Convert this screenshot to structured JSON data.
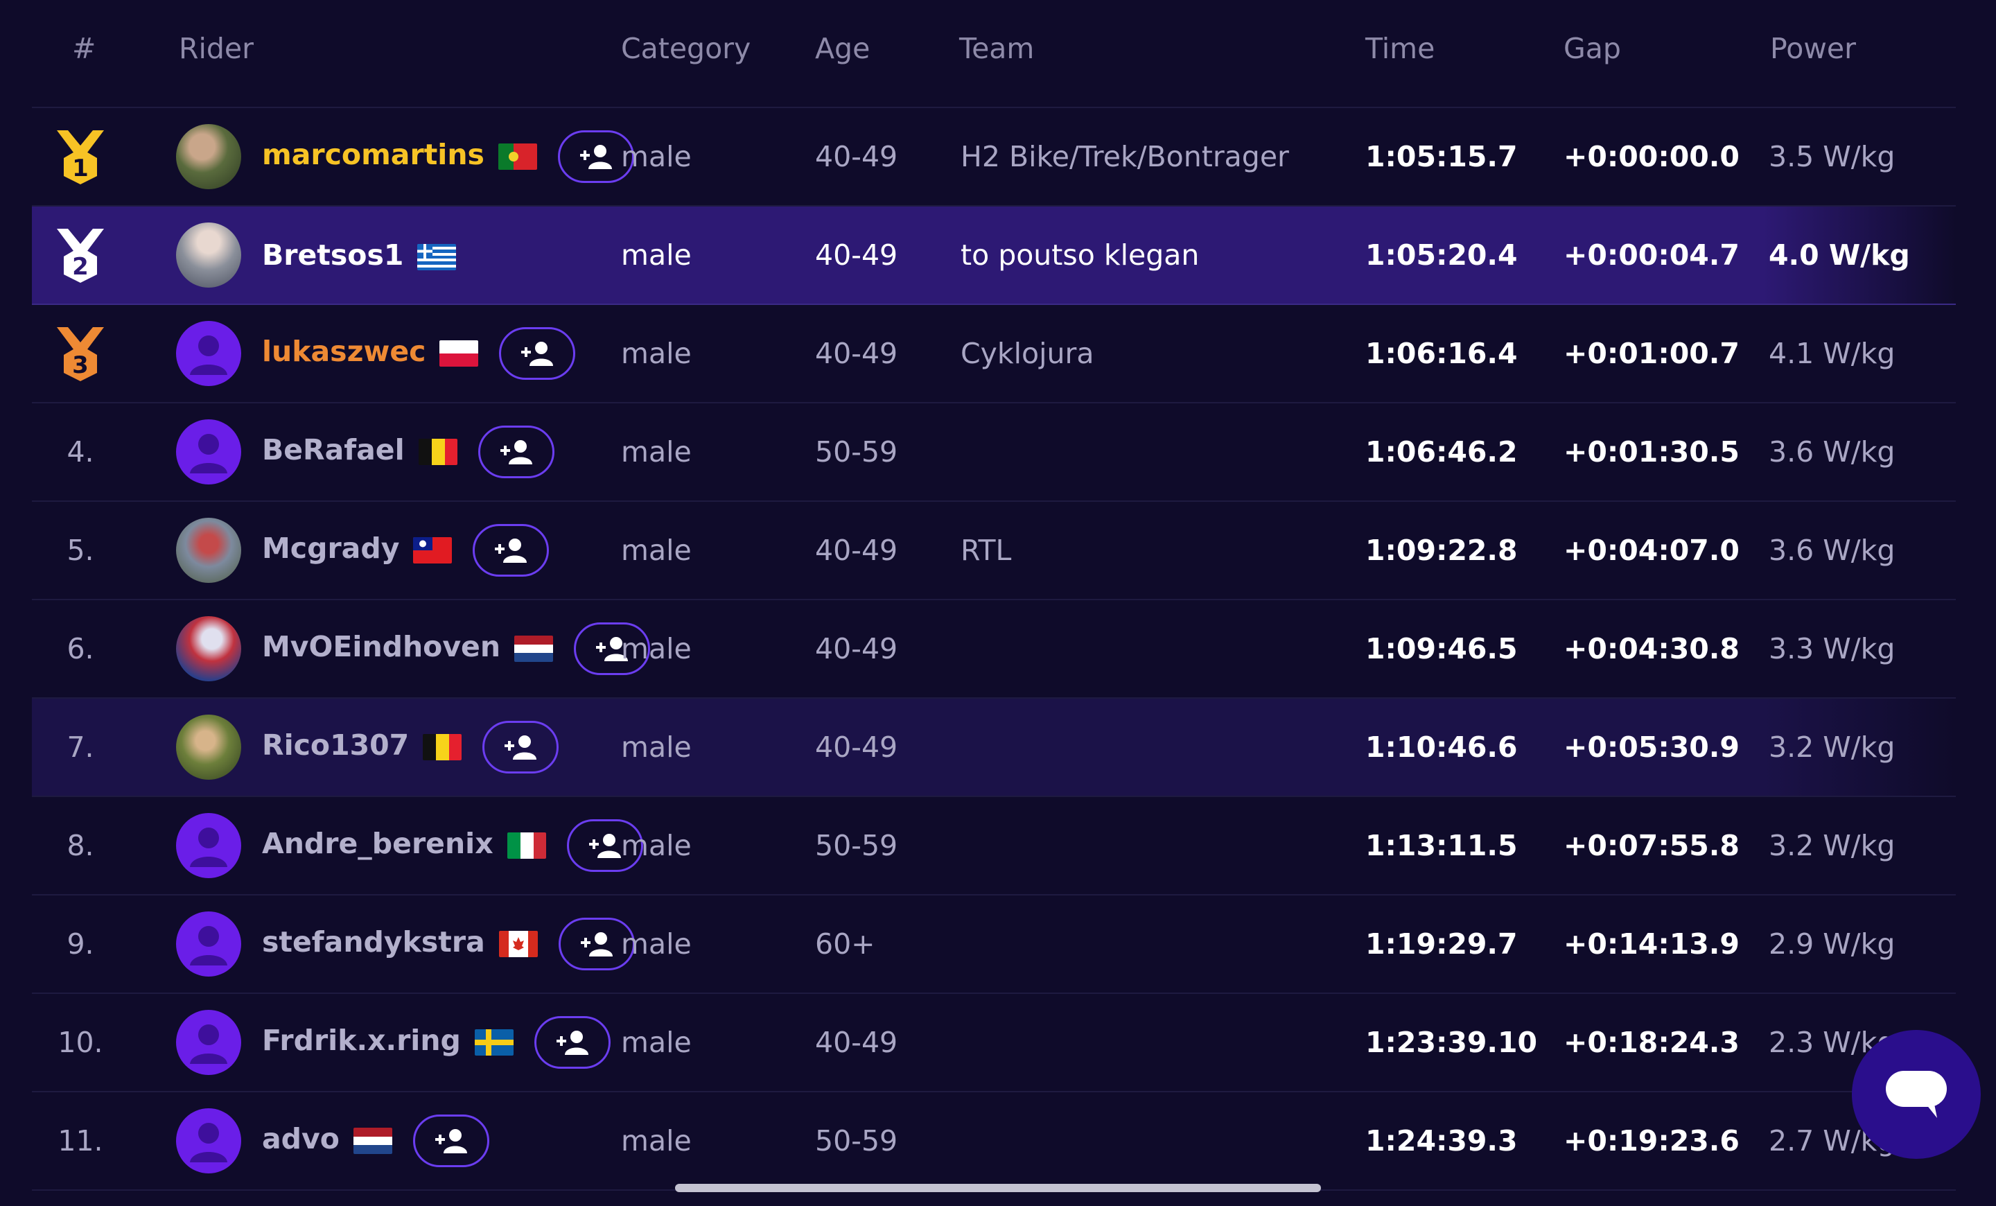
{
  "columns": {
    "rank": "#",
    "rider": "Rider",
    "category": "Category",
    "age": "Age",
    "team": "Team",
    "time": "Time",
    "gap": "Gap",
    "power": "Power"
  },
  "rows": [
    {
      "rank": "1",
      "medal": "gold",
      "rider": "marcomartins",
      "flag": "portugal",
      "category": "male",
      "age": "40-49",
      "team": "H2 Bike/Trek/Bontrager",
      "time": "1:05:15.7",
      "gap": "+0:00:00.0",
      "power": "3.5 W/kg"
    },
    {
      "rank": "2",
      "medal": "silver",
      "rider": "Bretsos1",
      "flag": "greece",
      "category": "male",
      "age": "40-49",
      "team": "to poutso klegan",
      "time": "1:05:20.4",
      "gap": "+0:00:04.7",
      "power": "4.0 W/kg"
    },
    {
      "rank": "3",
      "medal": "bronze",
      "rider": "lukaszwec",
      "flag": "poland",
      "category": "male",
      "age": "40-49",
      "team": "Cyklojura",
      "time": "1:06:16.4",
      "gap": "+0:01:00.7",
      "power": "4.1 W/kg"
    },
    {
      "rank": "4.",
      "rider": "BeRafael",
      "flag": "belgium",
      "category": "male",
      "age": "50-59",
      "team": "",
      "time": "1:06:46.2",
      "gap": "+0:01:30.5",
      "power": "3.6 W/kg"
    },
    {
      "rank": "5.",
      "rider": "Mcgrady",
      "flag": "taiwan",
      "category": "male",
      "age": "40-49",
      "team": "RTL",
      "time": "1:09:22.8",
      "gap": "+0:04:07.0",
      "power": "3.6 W/kg"
    },
    {
      "rank": "6.",
      "rider": "MvOEindhoven",
      "flag": "netherlands",
      "category": "male",
      "age": "40-49",
      "team": "",
      "time": "1:09:46.5",
      "gap": "+0:04:30.8",
      "power": "3.3 W/kg"
    },
    {
      "rank": "7.",
      "rider": "Rico1307",
      "flag": "belgium",
      "category": "male",
      "age": "40-49",
      "team": "",
      "time": "1:10:46.6",
      "gap": "+0:05:30.9",
      "power": "3.2 W/kg"
    },
    {
      "rank": "8.",
      "rider": "Andre_berenix",
      "flag": "italy",
      "category": "male",
      "age": "50-59",
      "team": "",
      "time": "1:13:11.5",
      "gap": "+0:07:55.8",
      "power": "3.2 W/kg"
    },
    {
      "rank": "9.",
      "rider": "stefandykstra",
      "flag": "canada",
      "category": "male",
      "age": "60+",
      "team": "",
      "time": "1:19:29.7",
      "gap": "+0:14:13.9",
      "power": "2.9 W/kg"
    },
    {
      "rank": "10.",
      "rider": "Frdrik.x.ring",
      "flag": "sweden",
      "category": "male",
      "age": "40-49",
      "team": "",
      "time": "1:23:39.10",
      "gap": "+0:18:24.3",
      "power": "2.3 W/kg"
    },
    {
      "rank": "11.",
      "rider": "advo",
      "flag": "netherlands",
      "category": "male",
      "age": "50-59",
      "team": "",
      "time": "1:24:39.3",
      "gap": "+0:19:23.6",
      "power": "2.7 W/kg"
    }
  ],
  "colors": {
    "background": "#0f0b2a",
    "accent": "#6b3df0",
    "gold": "#f7c325",
    "bronze": "#ee8a34",
    "highlight_row": "#2d1974"
  }
}
